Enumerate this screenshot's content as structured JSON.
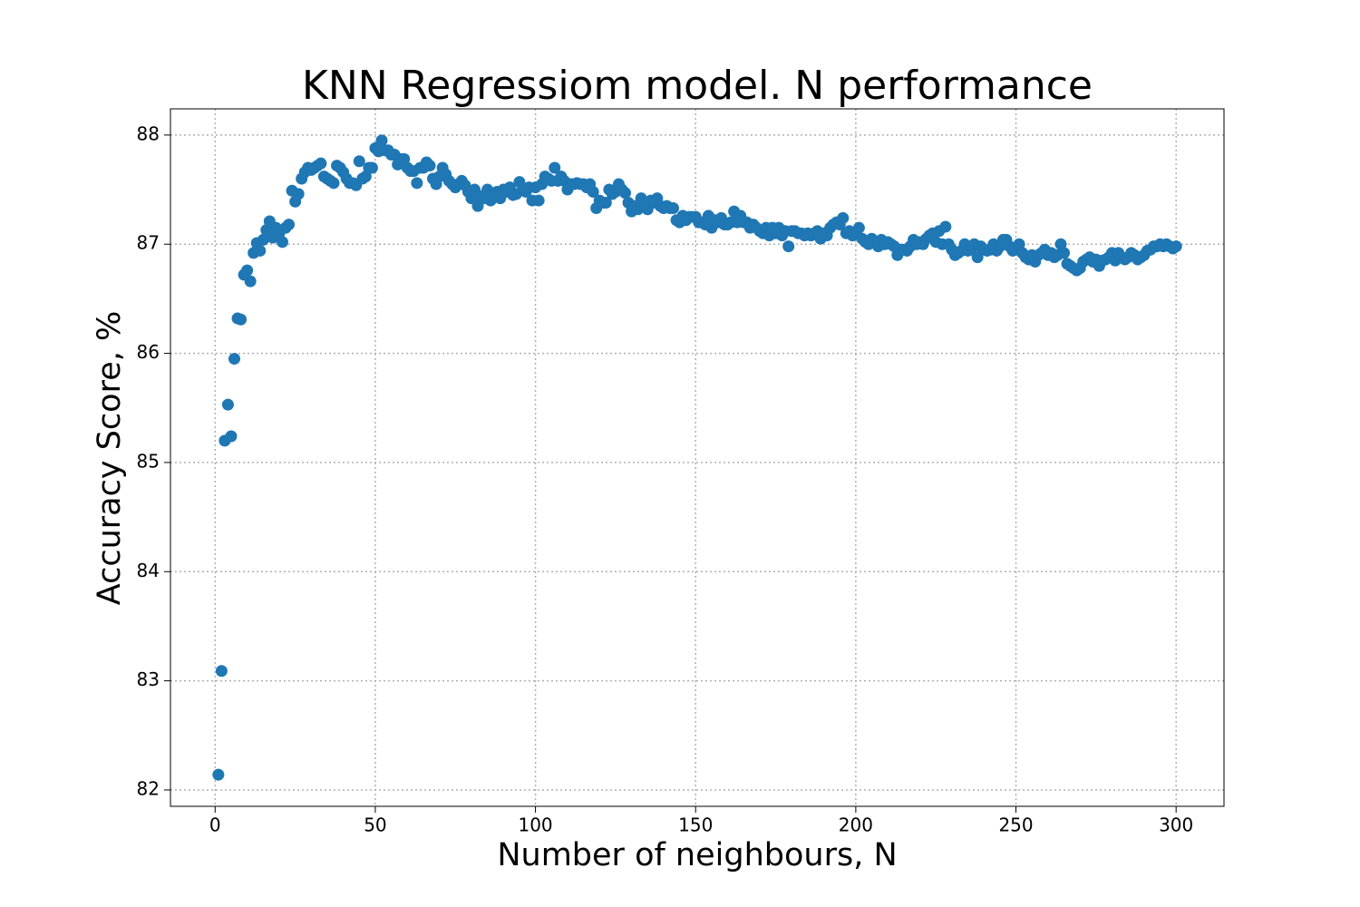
{
  "chart_data": {
    "type": "scatter",
    "title": "KNN Regressiom model. N performance",
    "x_label": "Number of neighbours, N",
    "y_label": "Accuracy Score, %",
    "color": "#1f77b4",
    "grid": true,
    "xlim": [
      -13.95,
      314.95
    ],
    "ylim": [
      81.85,
      88.24
    ],
    "xticks": [
      0,
      50,
      100,
      150,
      200,
      250,
      300
    ],
    "yticks": [
      82,
      83,
      84,
      85,
      86,
      87,
      88
    ],
    "x": [
      1,
      2,
      3,
      4,
      5,
      6,
      7,
      8,
      9,
      10,
      11,
      12,
      13,
      14,
      15,
      16,
      17,
      18,
      19,
      20,
      21,
      22,
      23,
      24,
      25,
      26,
      27,
      28,
      29,
      30,
      31,
      32,
      33,
      34,
      35,
      36,
      37,
      38,
      39,
      40,
      41,
      42,
      43,
      44,
      45,
      46,
      47,
      48,
      49,
      50,
      51,
      52,
      53,
      54,
      55,
      56,
      57,
      58,
      59,
      60,
      61,
      62,
      63,
      64,
      65,
      66,
      67,
      68,
      69,
      70,
      71,
      72,
      73,
      74,
      75,
      76,
      77,
      78,
      79,
      80,
      81,
      82,
      83,
      84,
      85,
      86,
      87,
      88,
      89,
      90,
      91,
      92,
      93,
      94,
      95,
      96,
      97,
      98,
      99,
      100,
      101,
      102,
      103,
      104,
      105,
      106,
      107,
      108,
      109,
      110,
      111,
      112,
      113,
      114,
      115,
      116,
      117,
      118,
      119,
      120,
      121,
      122,
      123,
      124,
      125,
      126,
      127,
      128,
      129,
      130,
      131,
      132,
      133,
      134,
      135,
      136,
      137,
      138,
      139,
      140,
      141,
      142,
      143,
      144,
      145,
      146,
      147,
      148,
      149,
      150,
      151,
      152,
      153,
      154,
      155,
      156,
      157,
      158,
      159,
      160,
      161,
      162,
      163,
      164,
      165,
      166,
      167,
      168,
      169,
      170,
      171,
      172,
      173,
      174,
      175,
      176,
      177,
      178,
      179,
      180,
      181,
      182,
      183,
      184,
      185,
      186,
      187,
      188,
      189,
      190,
      191,
      192,
      193,
      194,
      195,
      196,
      197,
      198,
      199,
      200,
      201,
      202,
      203,
      204,
      205,
      206,
      207,
      208,
      209,
      210,
      211,
      212,
      213,
      214,
      215,
      216,
      217,
      218,
      219,
      220,
      221,
      222,
      223,
      224,
      225,
      226,
      227,
      228,
      229,
      230,
      231,
      232,
      233,
      234,
      235,
      236,
      237,
      238,
      239,
      240,
      241,
      242,
      243,
      244,
      245,
      246,
      247,
      248,
      249,
      250,
      251,
      252,
      253,
      254,
      255,
      256,
      257,
      258,
      259,
      260,
      261,
      262,
      263,
      264,
      265,
      266,
      267,
      268,
      269,
      270,
      271,
      272,
      273,
      274,
      275,
      276,
      277,
      278,
      279,
      280,
      281,
      282,
      283,
      284,
      285,
      286,
      287,
      288,
      289,
      290,
      291,
      292,
      293,
      294,
      295,
      296,
      297,
      298,
      299,
      300
    ],
    "values": [
      82.14,
      83.09,
      85.2,
      85.53,
      85.24,
      85.95,
      86.32,
      86.31,
      86.72,
      86.76,
      86.66,
      86.92,
      87.01,
      86.94,
      87.04,
      87.13,
      87.21,
      87.06,
      87.15,
      87.1,
      87.02,
      87.15,
      87.18,
      87.49,
      87.39,
      87.46,
      87.6,
      87.66,
      87.7,
      87.68,
      87.7,
      87.72,
      87.74,
      87.62,
      87.6,
      87.58,
      87.56,
      87.72,
      87.7,
      87.66,
      87.6,
      87.56,
      87.56,
      87.54,
      87.76,
      87.6,
      87.62,
      87.7,
      87.7,
      87.88,
      87.85,
      87.95,
      87.86,
      87.86,
      87.82,
      87.82,
      87.73,
      87.78,
      87.78,
      87.7,
      87.67,
      87.67,
      87.56,
      87.7,
      87.7,
      87.75,
      87.72,
      87.6,
      87.55,
      87.62,
      87.7,
      87.64,
      87.58,
      87.55,
      87.52,
      87.55,
      87.58,
      87.54,
      87.48,
      87.42,
      87.5,
      87.35,
      87.44,
      87.42,
      87.5,
      87.4,
      87.45,
      87.48,
      87.42,
      87.5,
      87.48,
      87.52,
      87.45,
      87.46,
      87.57,
      87.5,
      87.48,
      87.52,
      87.4,
      87.52,
      87.4,
      87.55,
      87.62,
      87.6,
      87.58,
      87.7,
      87.58,
      87.62,
      87.58,
      87.5,
      87.55,
      87.55,
      87.56,
      87.55,
      87.55,
      87.52,
      87.55,
      87.48,
      87.33,
      87.4,
      87.38,
      87.38,
      87.5,
      87.46,
      87.48,
      87.55,
      87.5,
      87.47,
      87.38,
      87.3,
      87.35,
      87.32,
      87.42,
      87.35,
      87.32,
      87.4,
      87.38,
      87.42,
      87.35,
      87.33,
      87.35,
      87.33,
      87.33,
      87.22,
      87.2,
      87.26,
      87.22,
      87.25,
      87.25,
      87.25,
      87.2,
      87.2,
      87.18,
      87.26,
      87.15,
      87.22,
      87.2,
      87.24,
      87.18,
      87.18,
      87.2,
      87.3,
      87.2,
      87.26,
      87.2,
      87.2,
      87.15,
      87.18,
      87.15,
      87.12,
      87.1,
      87.15,
      87.08,
      87.15,
      87.1,
      87.15,
      87.08,
      87.12,
      86.98,
      87.12,
      87.12,
      87.1,
      87.1,
      87.08,
      87.1,
      87.08,
      87.1,
      87.12,
      87.05,
      87.1,
      87.08,
      87.15,
      87.18,
      87.2,
      87.18,
      87.24,
      87.1,
      87.12,
      87.08,
      87.1,
      87.15,
      87.05,
      87.02,
      87.0,
      87.05,
      87.02,
      86.98,
      87.04,
      87.0,
      87.02,
      87.0,
      86.98,
      86.9,
      86.95,
      86.95,
      86.94,
      86.98,
      87.04,
      87.0,
      87.02,
      87.0,
      87.05,
      87.08,
      87.1,
      87.02,
      87.12,
      87.0,
      87.16,
      87.0,
      86.95,
      86.9,
      86.92,
      86.94,
      87.0,
      86.94,
      86.95,
      87.0,
      86.88,
      86.98,
      86.95,
      86.94,
      86.95,
      87.0,
      86.94,
      86.98,
      87.04,
      87.04,
      86.98,
      86.94,
      86.95,
      87.0,
      86.92,
      86.88,
      86.86,
      86.9,
      86.84,
      86.9,
      86.92,
      86.95,
      86.9,
      86.92,
      86.88,
      86.9,
      87.0,
      86.92,
      86.82,
      86.8,
      86.78,
      86.76,
      86.78,
      86.84,
      86.86,
      86.88,
      86.84,
      86.86,
      86.8,
      86.85,
      86.86,
      86.88,
      86.92,
      86.85,
      86.92,
      86.88,
      86.86,
      86.88,
      86.92,
      86.9,
      86.86,
      86.88,
      86.9,
      86.94,
      86.95,
      86.98,
      86.98,
      87.0,
      86.98,
      87.0,
      86.98,
      86.96,
      86.98
    ]
  }
}
